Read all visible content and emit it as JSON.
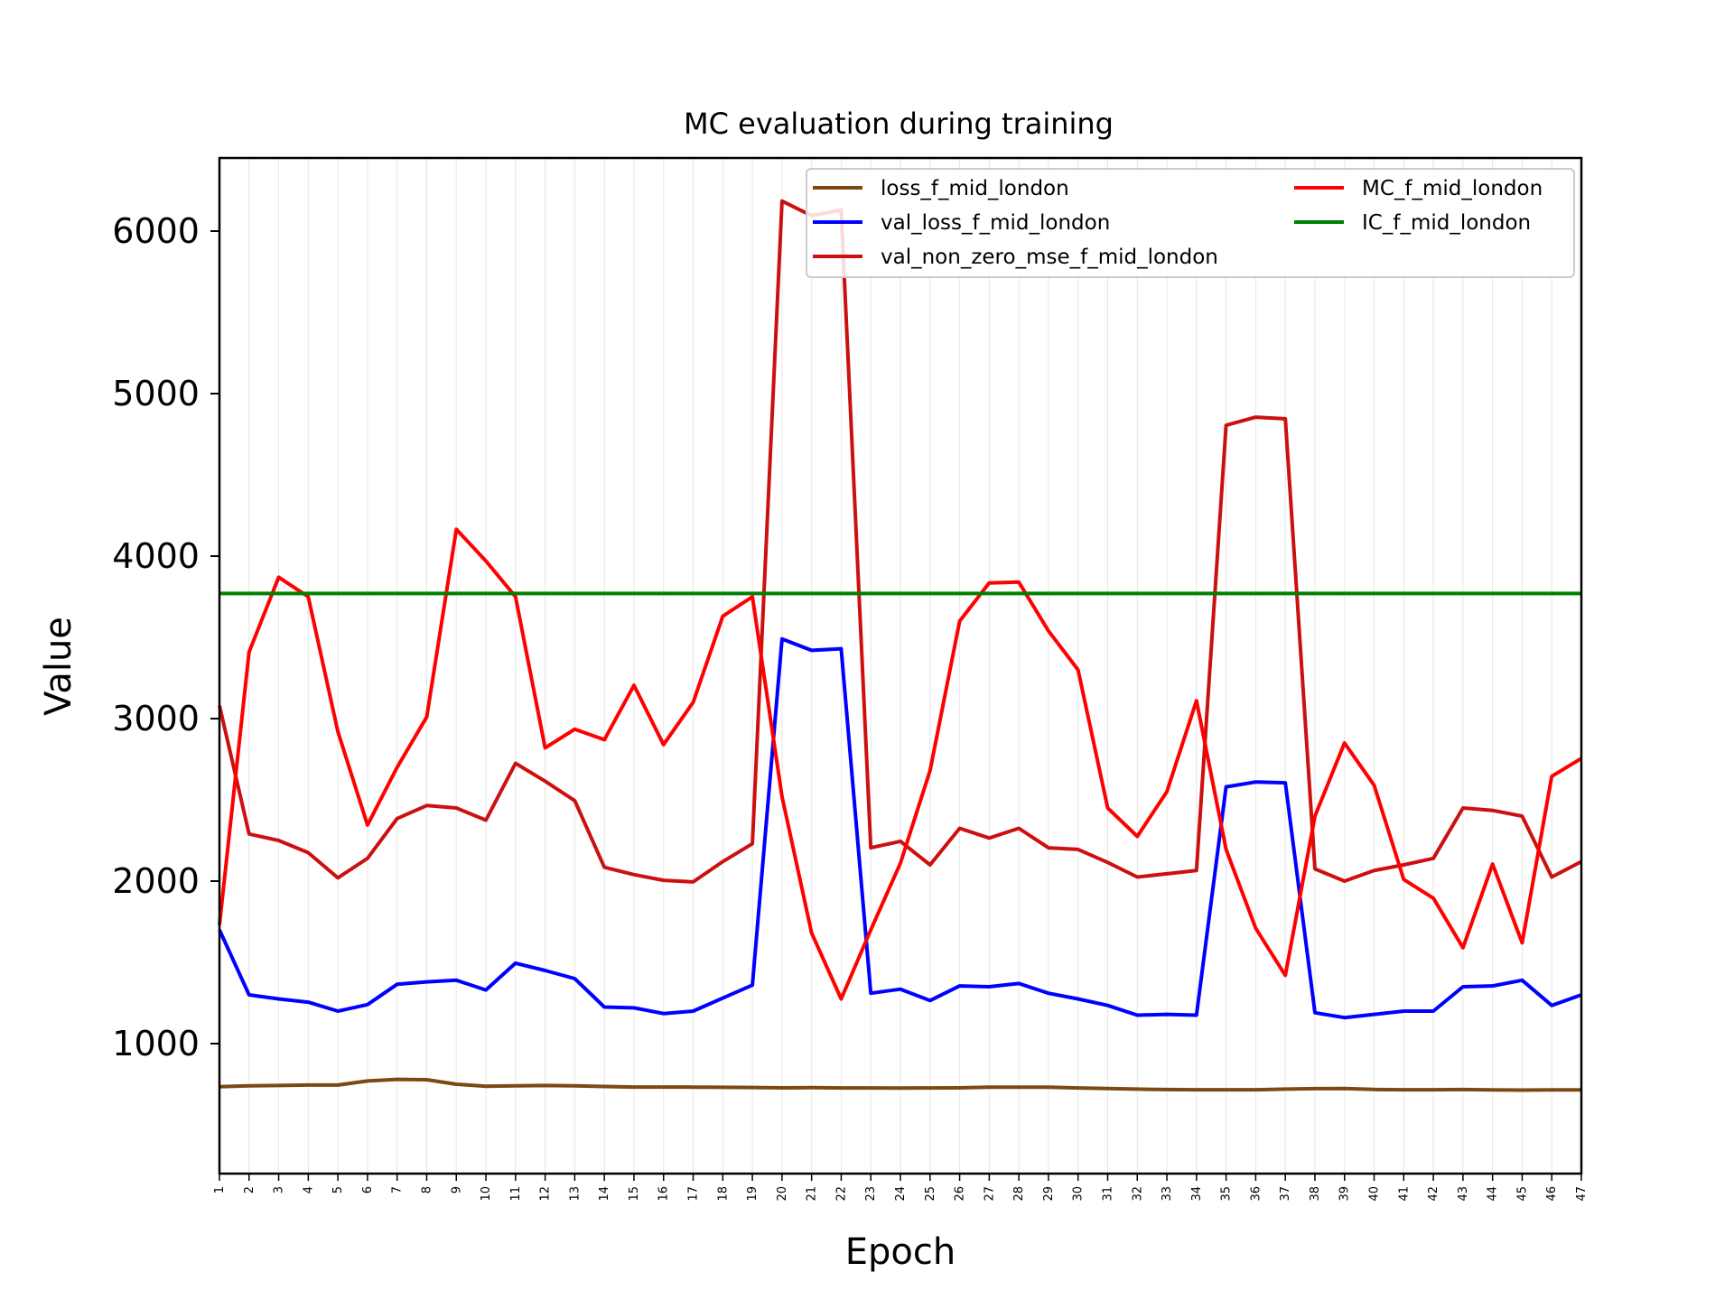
{
  "chart_data": {
    "type": "line",
    "title": "MC evaluation during training",
    "xlabel": "Epoch",
    "ylabel": "Value",
    "x": [
      1,
      2,
      3,
      4,
      5,
      6,
      7,
      8,
      9,
      10,
      11,
      12,
      13,
      14,
      15,
      16,
      17,
      18,
      19,
      20,
      21,
      22,
      23,
      24,
      25,
      26,
      27,
      28,
      29,
      30,
      31,
      32,
      33,
      34,
      35,
      36,
      37,
      38,
      39,
      40,
      41,
      42,
      43,
      44,
      45,
      46,
      47
    ],
    "xlim": [
      1,
      47
    ],
    "ylim": [
      200,
      6450
    ],
    "yticks": [
      1000,
      2000,
      3000,
      4000,
      5000,
      6000
    ],
    "grid": "vertical light",
    "legend_position": "top-right",
    "series": [
      {
        "name": "loss_f_mid_london",
        "color": "#7b4a12",
        "values": [
          735,
          740,
          742,
          745,
          745,
          770,
          780,
          778,
          750,
          738,
          740,
          742,
          740,
          736,
          733,
          733,
          732,
          731,
          730,
          728,
          729,
          727,
          727,
          726,
          727,
          728,
          732,
          732,
          732,
          727,
          724,
          720,
          717,
          716,
          716,
          716,
          720,
          723,
          724,
          718,
          716,
          716,
          717,
          715,
          714,
          715,
          715
        ]
      },
      {
        "name": "val_loss_f_mid_london",
        "color": "#0000ff",
        "values": [
          1700,
          1300,
          1275,
          1255,
          1200,
          1240,
          1365,
          1380,
          1390,
          1330,
          1495,
          1450,
          1400,
          1225,
          1220,
          1185,
          1200,
          1280,
          1360,
          3490,
          3420,
          3430,
          1310,
          1335,
          1265,
          1355,
          1350,
          1370,
          1310,
          1275,
          1235,
          1175,
          1180,
          1175,
          2580,
          2610,
          2605,
          1190,
          1160,
          1180,
          1200,
          1200,
          1350,
          1355,
          1390,
          1235,
          1300
        ]
      },
      {
        "name": "val_non_zero_mse_f_mid_london",
        "color": "#cc1010",
        "values": [
          3080,
          2290,
          2250,
          2175,
          2020,
          2140,
          2385,
          2465,
          2450,
          2375,
          2725,
          2615,
          2495,
          2085,
          2040,
          2005,
          1995,
          2120,
          2230,
          6185,
          6095,
          6130,
          2205,
          2245,
          2100,
          2325,
          2265,
          2325,
          2205,
          2195,
          2115,
          2025,
          2045,
          2065,
          4805,
          4855,
          4845,
          2075,
          2000,
          2065,
          2100,
          2140,
          2450,
          2435,
          2400,
          2025,
          2120
        ]
      },
      {
        "name": "MC_f_mid_london",
        "color": "#ff0000",
        "values": [
          1730,
          3410,
          3870,
          3750,
          2920,
          2345,
          2700,
          3010,
          4165,
          3970,
          3750,
          2820,
          2935,
          2870,
          3205,
          2840,
          3100,
          3630,
          3750,
          2520,
          1680,
          1275,
          1700,
          2110,
          2680,
          3600,
          3835,
          3840,
          3540,
          3300,
          2450,
          2275,
          2550,
          3110,
          2195,
          1710,
          1420,
          2400,
          2850,
          2590,
          2010,
          1895,
          1590,
          2105,
          1620,
          2645,
          2755
        ]
      },
      {
        "name": "IC_f_mid_london",
        "color": "#008000",
        "values": [
          3770,
          3770,
          3770,
          3770,
          3770,
          3770,
          3770,
          3770,
          3770,
          3770,
          3770,
          3770,
          3770,
          3770,
          3770,
          3770,
          3770,
          3770,
          3770,
          3770,
          3770,
          3770,
          3770,
          3770,
          3770,
          3770,
          3770,
          3770,
          3770,
          3770,
          3770,
          3770,
          3770,
          3770,
          3770,
          3770,
          3770,
          3770,
          3770,
          3770,
          3770,
          3770,
          3770,
          3770,
          3770,
          3770,
          3770
        ]
      }
    ]
  }
}
